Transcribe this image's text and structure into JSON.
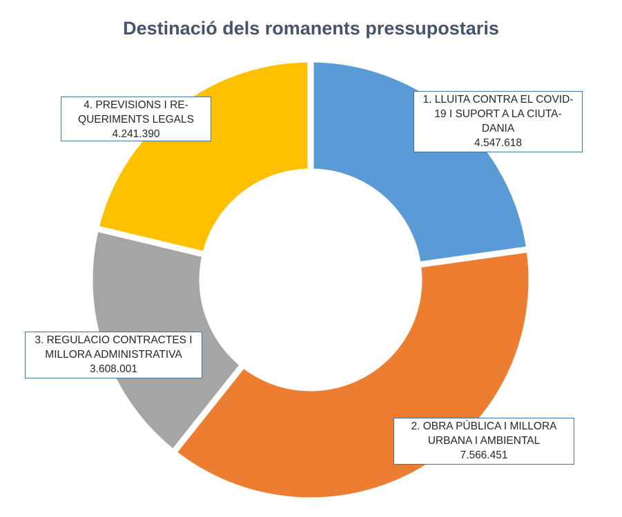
{
  "title": "Destinació dels romanents pressupostaris",
  "colors": {
    "title_text": "#44546A",
    "label_border": "#41719C",
    "slice_blue": "#5B9BD5",
    "slice_orange": "#ED7D31",
    "slice_gray": "#A5A5A5",
    "slice_yellow": "#FFC000"
  },
  "chart_data": {
    "type": "pie",
    "subtype": "donut",
    "title": "Destinació dels romanents pressupostaris",
    "categories": [
      "1. LLUITA CONTRA EL COVID-19 I SUPORT A LA CIUTADANIA",
      "2. OBRA PÚBLICA I MILLORA URBANA I AMBIENTAL",
      "3. REGULACIO CONTRACTES I MILLORA ADMINISTRATIVA",
      "4. PREVISIONS I REQUERIMENTS LEGALS"
    ],
    "values": [
      4547618,
      7566451,
      3608001,
      4241390
    ],
    "colors": [
      "#5B9BD5",
      "#ED7D31",
      "#A5A5A5",
      "#FFC000"
    ],
    "start_angle_deg": 0,
    "clockwise": true,
    "hole_ratio": 0.5,
    "legend_position": "none",
    "grid": false,
    "data_labels": [
      {
        "lines": [
          "1. LLUITA CONTRA EL COVID-",
          "19 I SUPORT A LA CIUTA-",
          "DANIA"
        ],
        "value": "4.547.618"
      },
      {
        "lines": [
          "2. OBRA PÚBLICA I MILLORA",
          "URBANA I AMBIENTAL"
        ],
        "value": "7.566.451"
      },
      {
        "lines": [
          "3. REGULACIO CONTRACTES I",
          "MILLORA ADMINISTRATIVA"
        ],
        "value": "3.608.001"
      },
      {
        "lines": [
          "4. PREVISIONS I RE-",
          "QUERIMENTS LEGALS"
        ],
        "value": "4.241.390"
      }
    ]
  }
}
